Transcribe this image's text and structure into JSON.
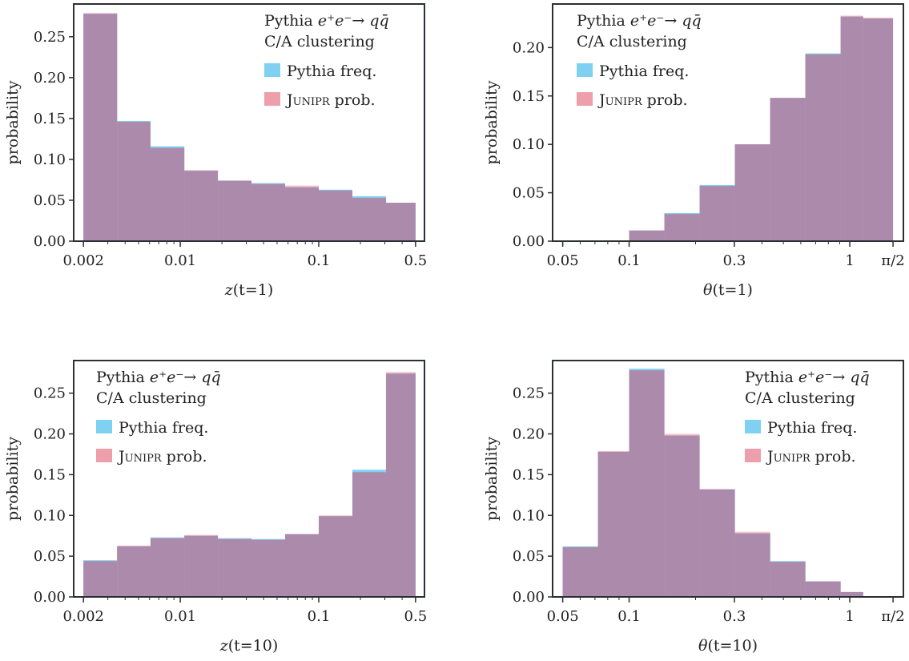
{
  "chart_data": [
    {
      "type": "bar",
      "xlabel": "z(t=1)",
      "ylabel": "probability",
      "xscale": "log",
      "xlim": [
        0.0017,
        0.58
      ],
      "ylim": [
        0,
        0.29
      ],
      "xticks": [
        {
          "v": 0.002,
          "label": "0.002"
        },
        {
          "v": 0.01,
          "label": "0.01"
        },
        {
          "v": 0.1,
          "label": "0.1"
        },
        {
          "v": 0.5,
          "label": "0.5"
        }
      ],
      "yticks": [
        {
          "v": 0,
          "label": "0.00"
        },
        {
          "v": 0.05,
          "label": "0.05"
        },
        {
          "v": 0.1,
          "label": "0.10"
        },
        {
          "v": 0.15,
          "label": "0.15"
        },
        {
          "v": 0.2,
          "label": "0.20"
        },
        {
          "v": 0.25,
          "label": "0.25"
        }
      ],
      "legend_placement": "top-right",
      "legend_title": [
        "Pythia e⁺e⁻→ qq̄",
        "C/A clustering"
      ],
      "bin_edges": [
        0.002,
        0.0035,
        0.0061,
        0.0107,
        0.0187,
        0.0327,
        0.0572,
        0.1,
        0.175,
        0.306,
        0.5
      ],
      "series": [
        {
          "name": "Pythia freq.",
          "values": [
            0.278,
            0.147,
            0.116,
            0.086,
            0.074,
            0.071,
            0.066,
            0.063,
            0.055,
            0.047
          ]
        },
        {
          "name": "Junipr prob.",
          "values": [
            0.279,
            0.146,
            0.114,
            0.087,
            0.074,
            0.07,
            0.068,
            0.062,
            0.053,
            0.047
          ]
        }
      ]
    },
    {
      "type": "bar",
      "xlabel": "θ(t=1)",
      "ylabel": "probability",
      "xscale": "log",
      "xlim": [
        0.045,
        1.75
      ],
      "ylim": [
        0,
        0.245
      ],
      "xticks": [
        {
          "v": 0.05,
          "label": "0.05"
        },
        {
          "v": 0.1,
          "label": "0.1"
        },
        {
          "v": 0.3,
          "label": "0.3"
        },
        {
          "v": 1,
          "label": "1"
        },
        {
          "v": 1.5708,
          "label": "π/2"
        }
      ],
      "yticks": [
        {
          "v": 0,
          "label": "0.00"
        },
        {
          "v": 0.05,
          "label": "0.05"
        },
        {
          "v": 0.1,
          "label": "0.10"
        },
        {
          "v": 0.15,
          "label": "0.15"
        },
        {
          "v": 0.2,
          "label": "0.20"
        }
      ],
      "legend_placement": "top-left",
      "legend_title": [
        "Pythia e⁺e⁻→ qq̄",
        "C/A clustering"
      ],
      "bin_edges": [
        0.05,
        0.0722,
        0.1,
        0.1445,
        0.2087,
        0.3015,
        0.4356,
        0.6292,
        0.909,
        1.15,
        1.5708
      ],
      "series": [
        {
          "name": "Pythia freq.",
          "values": [
            0,
            0,
            0.011,
            0.029,
            0.058,
            0.1,
            0.148,
            0.194,
            0.232,
            0.23
          ]
        },
        {
          "name": "Junipr prob.",
          "values": [
            0,
            0,
            0.011,
            0.028,
            0.057,
            0.1,
            0.148,
            0.193,
            0.233,
            0.231
          ]
        }
      ]
    },
    {
      "type": "bar",
      "xlabel": "z(t=10)",
      "ylabel": "probability",
      "xscale": "log",
      "xlim": [
        0.0017,
        0.58
      ],
      "ylim": [
        0,
        0.29
      ],
      "xticks": [
        {
          "v": 0.002,
          "label": "0.002"
        },
        {
          "v": 0.01,
          "label": "0.01"
        },
        {
          "v": 0.1,
          "label": "0.1"
        },
        {
          "v": 0.5,
          "label": "0.5"
        }
      ],
      "yticks": [
        {
          "v": 0,
          "label": "0.00"
        },
        {
          "v": 0.05,
          "label": "0.05"
        },
        {
          "v": 0.1,
          "label": "0.10"
        },
        {
          "v": 0.15,
          "label": "0.15"
        },
        {
          "v": 0.2,
          "label": "0.20"
        },
        {
          "v": 0.25,
          "label": "0.25"
        }
      ],
      "legend_placement": "top-left",
      "legend_title": [
        "Pythia e⁺e⁻→ qq̄",
        "C/A clustering"
      ],
      "bin_edges": [
        0.002,
        0.0035,
        0.0061,
        0.0107,
        0.0187,
        0.0327,
        0.0572,
        0.1,
        0.175,
        0.306,
        0.5
      ],
      "series": [
        {
          "name": "Pythia freq.",
          "values": [
            0.045,
            0.062,
            0.073,
            0.075,
            0.072,
            0.071,
            0.077,
            0.099,
            0.156,
            0.274
          ]
        },
        {
          "name": "Junipr prob.",
          "values": [
            0.044,
            0.063,
            0.072,
            0.076,
            0.071,
            0.07,
            0.077,
            0.1,
            0.153,
            0.276
          ]
        }
      ]
    },
    {
      "type": "bar",
      "xlabel": "θ(t=10)",
      "ylabel": "probability",
      "xscale": "log",
      "xlim": [
        0.045,
        1.75
      ],
      "ylim": [
        0,
        0.29
      ],
      "xticks": [
        {
          "v": 0.05,
          "label": "0.05"
        },
        {
          "v": 0.1,
          "label": "0.1"
        },
        {
          "v": 0.3,
          "label": "0.3"
        },
        {
          "v": 1,
          "label": "1"
        },
        {
          "v": 1.5708,
          "label": "π/2"
        }
      ],
      "yticks": [
        {
          "v": 0,
          "label": "0.00"
        },
        {
          "v": 0.05,
          "label": "0.05"
        },
        {
          "v": 0.1,
          "label": "0.10"
        },
        {
          "v": 0.15,
          "label": "0.15"
        },
        {
          "v": 0.2,
          "label": "0.20"
        },
        {
          "v": 0.25,
          "label": "0.25"
        }
      ],
      "legend_placement": "top-right",
      "legend_title": [
        "Pythia e⁺e⁻→ qq̄",
        "C/A clustering"
      ],
      "bin_edges": [
        0.05,
        0.0722,
        0.1,
        0.1445,
        0.2087,
        0.3015,
        0.4356,
        0.6292,
        0.909,
        1.15,
        1.5708
      ],
      "series": [
        {
          "name": "Pythia freq.",
          "values": [
            0.062,
            0.178,
            0.28,
            0.198,
            0.132,
            0.078,
            0.044,
            0.019,
            0.006,
            0
          ]
        },
        {
          "name": "Junipr prob.",
          "values": [
            0.061,
            0.179,
            0.278,
            0.2,
            0.132,
            0.08,
            0.043,
            0.019,
            0.006,
            0
          ]
        }
      ]
    }
  ],
  "colors": {
    "pythia": "#7fd1f2",
    "junipr": "#ee9fac",
    "axes": "#2b2f33",
    "text": "#222222"
  }
}
